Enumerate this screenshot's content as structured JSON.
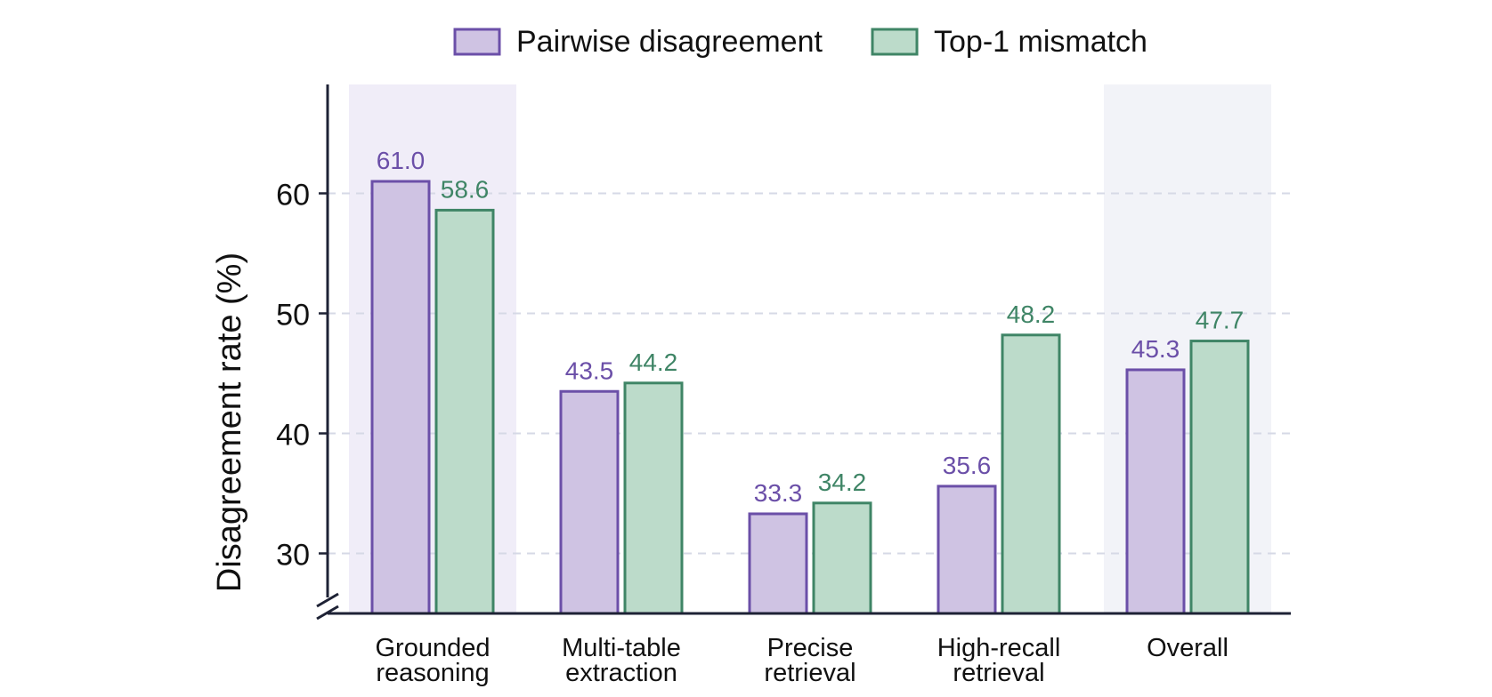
{
  "chart_data": {
    "type": "bar",
    "categories": [
      [
        "Grounded",
        "reasoning"
      ],
      [
        "Multi-table",
        "extraction"
      ],
      [
        "Precise",
        "retrieval"
      ],
      [
        "High-recall",
        "retrieval"
      ],
      [
        "Overall"
      ]
    ],
    "highlighted_categories": [
      0,
      4
    ],
    "series": [
      {
        "name": "Pairwise disagreement",
        "values": [
          61.0,
          43.5,
          33.3,
          35.6,
          45.3
        ],
        "labels": [
          "61.0",
          "43.5",
          "33.3",
          "35.6",
          "45.3"
        ],
        "fill": "#cfc3e3",
        "stroke": "#6b4fa8",
        "label_color": "#6b4fa8"
      },
      {
        "name": "Top-1 mismatch",
        "values": [
          58.6,
          44.2,
          34.2,
          48.2,
          47.7
        ],
        "labels": [
          "58.6",
          "44.2",
          "34.2",
          "48.2",
          "47.7"
        ],
        "fill": "#bcdbca",
        "stroke": "#3f8566",
        "label_color": "#3f8566"
      }
    ],
    "ylabel": "Disagreement rate (%)",
    "xlabel": "",
    "yticks": [
      30,
      40,
      50,
      60
    ],
    "ylim": [
      25,
      69
    ],
    "axis_break": true,
    "grid": "horizontal-dashed",
    "legend": "top-center",
    "colors": {
      "axis": "#1e2235",
      "grid": "#d6d9e6",
      "highlight_first": "#f0edf8",
      "highlight_last": "#f2f3f8"
    }
  }
}
